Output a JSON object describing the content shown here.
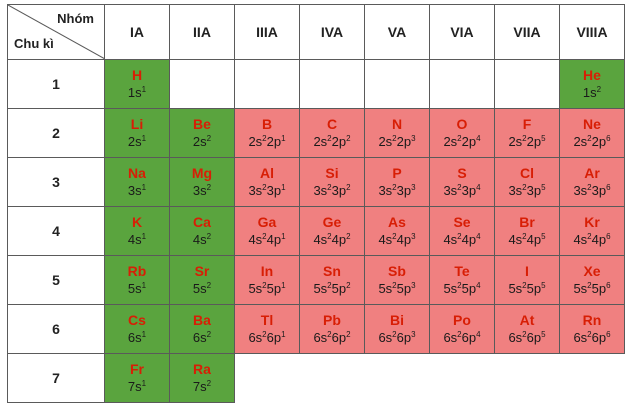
{
  "header": {
    "group_label": "Nhóm",
    "period_label": "Chu kì",
    "groups": [
      "IA",
      "IIA",
      "IIIA",
      "IVA",
      "VA",
      "VIA",
      "VIIA",
      "VIIIA"
    ]
  },
  "periods": [
    "1",
    "2",
    "3",
    "4",
    "5",
    "6",
    "7"
  ],
  "colors": {
    "s_block": "#5aa43e",
    "p_block": "#f08080",
    "symbol": "#d81e05"
  },
  "cells": [
    [
      {
        "sym": "H",
        "cfg": [
          [
            "1s",
            "1"
          ]
        ]
      },
      null,
      null,
      null,
      null,
      null,
      null,
      {
        "sym": "He",
        "cfg": [
          [
            "1s",
            "2"
          ]
        ]
      }
    ],
    [
      {
        "sym": "Li",
        "cfg": [
          [
            "2s",
            "1"
          ]
        ]
      },
      {
        "sym": "Be",
        "cfg": [
          [
            "2s",
            "2"
          ]
        ]
      },
      {
        "sym": "B",
        "cfg": [
          [
            "2s",
            "2"
          ],
          [
            "2p",
            "1"
          ]
        ]
      },
      {
        "sym": "C",
        "cfg": [
          [
            "2s",
            "2"
          ],
          [
            "2p",
            "2"
          ]
        ]
      },
      {
        "sym": "N",
        "cfg": [
          [
            "2s",
            "2"
          ],
          [
            "2p",
            "3"
          ]
        ]
      },
      {
        "sym": "O",
        "cfg": [
          [
            "2s",
            "2"
          ],
          [
            "2p",
            "4"
          ]
        ]
      },
      {
        "sym": "F",
        "cfg": [
          [
            "2s",
            "2"
          ],
          [
            "2p",
            "5"
          ]
        ]
      },
      {
        "sym": "Ne",
        "cfg": [
          [
            "2s",
            "2"
          ],
          [
            "2p",
            "6"
          ]
        ]
      }
    ],
    [
      {
        "sym": "Na",
        "cfg": [
          [
            "3s",
            "1"
          ]
        ]
      },
      {
        "sym": "Mg",
        "cfg": [
          [
            "3s",
            "2"
          ]
        ]
      },
      {
        "sym": "Al",
        "cfg": [
          [
            "3s",
            "2"
          ],
          [
            "3p",
            "1"
          ]
        ]
      },
      {
        "sym": "Si",
        "cfg": [
          [
            "3s",
            "2"
          ],
          [
            "3p",
            "2"
          ]
        ]
      },
      {
        "sym": "P",
        "cfg": [
          [
            "3s",
            "2"
          ],
          [
            "3p",
            "3"
          ]
        ]
      },
      {
        "sym": "S",
        "cfg": [
          [
            "3s",
            "2"
          ],
          [
            "3p",
            "4"
          ]
        ]
      },
      {
        "sym": "Cl",
        "cfg": [
          [
            "3s",
            "2"
          ],
          [
            "3p",
            "5"
          ]
        ]
      },
      {
        "sym": "Ar",
        "cfg": [
          [
            "3s",
            "2"
          ],
          [
            "3p",
            "6"
          ]
        ]
      }
    ],
    [
      {
        "sym": "K",
        "cfg": [
          [
            "4s",
            "1"
          ]
        ]
      },
      {
        "sym": "Ca",
        "cfg": [
          [
            "4s",
            "2"
          ]
        ]
      },
      {
        "sym": "Ga",
        "cfg": [
          [
            "4s",
            "2"
          ],
          [
            "4p",
            "1"
          ]
        ]
      },
      {
        "sym": "Ge",
        "cfg": [
          [
            "4s",
            "2"
          ],
          [
            "4p",
            "2"
          ]
        ]
      },
      {
        "sym": "As",
        "cfg": [
          [
            "4s",
            "2"
          ],
          [
            "4p",
            "3"
          ]
        ]
      },
      {
        "sym": "Se",
        "cfg": [
          [
            "4s",
            "2"
          ],
          [
            "4p",
            "4"
          ]
        ]
      },
      {
        "sym": "Br",
        "cfg": [
          [
            "4s",
            "2"
          ],
          [
            "4p",
            "5"
          ]
        ]
      },
      {
        "sym": "Kr",
        "cfg": [
          [
            "4s",
            "2"
          ],
          [
            "4p",
            "6"
          ]
        ]
      }
    ],
    [
      {
        "sym": "Rb",
        "cfg": [
          [
            "5s",
            "1"
          ]
        ]
      },
      {
        "sym": "Sr",
        "cfg": [
          [
            "5s",
            "2"
          ]
        ]
      },
      {
        "sym": "In",
        "cfg": [
          [
            "5s",
            "2"
          ],
          [
            "5p",
            "1"
          ]
        ]
      },
      {
        "sym": "Sn",
        "cfg": [
          [
            "5s",
            "2"
          ],
          [
            "5p",
            "2"
          ]
        ]
      },
      {
        "sym": "Sb",
        "cfg": [
          [
            "5s",
            "2"
          ],
          [
            "5p",
            "3"
          ]
        ]
      },
      {
        "sym": "Te",
        "cfg": [
          [
            "5s",
            "2"
          ],
          [
            "5p",
            "4"
          ]
        ]
      },
      {
        "sym": "I",
        "cfg": [
          [
            "5s",
            "2"
          ],
          [
            "5p",
            "5"
          ]
        ]
      },
      {
        "sym": "Xe",
        "cfg": [
          [
            "5s",
            "2"
          ],
          [
            "5p",
            "6"
          ]
        ]
      }
    ],
    [
      {
        "sym": "Cs",
        "cfg": [
          [
            "6s",
            "1"
          ]
        ]
      },
      {
        "sym": "Ba",
        "cfg": [
          [
            "6s",
            "2"
          ]
        ]
      },
      {
        "sym": "Tl",
        "cfg": [
          [
            "6s",
            "2"
          ],
          [
            "6p",
            "1"
          ]
        ]
      },
      {
        "sym": "Pb",
        "cfg": [
          [
            "6s",
            "2"
          ],
          [
            "6p",
            "2"
          ]
        ]
      },
      {
        "sym": "Bi",
        "cfg": [
          [
            "6s",
            "2"
          ],
          [
            "6p",
            "3"
          ]
        ]
      },
      {
        "sym": "Po",
        "cfg": [
          [
            "6s",
            "2"
          ],
          [
            "6p",
            "4"
          ]
        ]
      },
      {
        "sym": "At",
        "cfg": [
          [
            "6s",
            "2"
          ],
          [
            "6p",
            "5"
          ]
        ]
      },
      {
        "sym": "Rn",
        "cfg": [
          [
            "6s",
            "2"
          ],
          [
            "6p",
            "6"
          ]
        ]
      }
    ],
    [
      {
        "sym": "Fr",
        "cfg": [
          [
            "7s",
            "1"
          ]
        ]
      },
      {
        "sym": "Ra",
        "cfg": [
          [
            "7s",
            "2"
          ]
        ]
      },
      null,
      null,
      null,
      null,
      null,
      null
    ]
  ]
}
